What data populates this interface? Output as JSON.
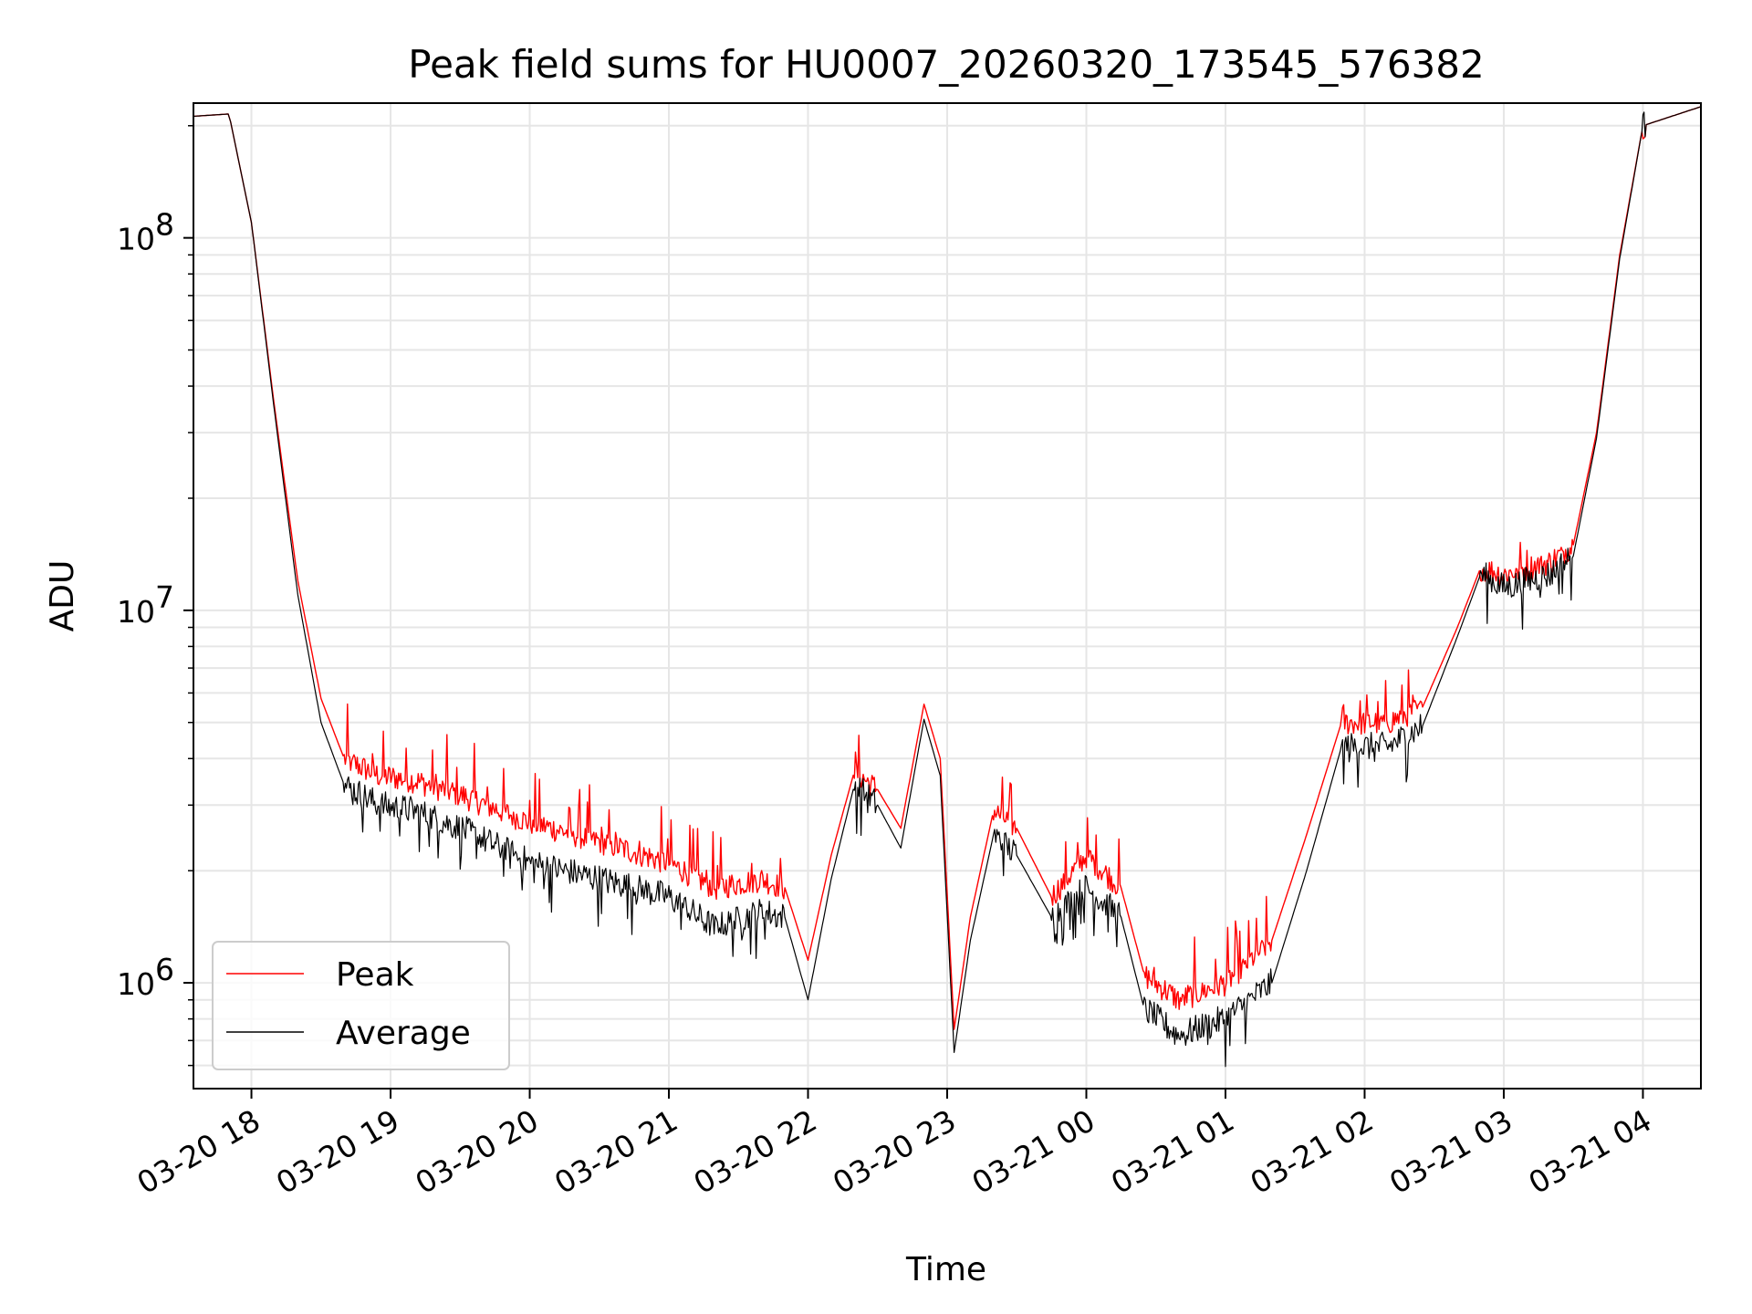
{
  "chart_data": {
    "type": "line",
    "title": "Peak field sums for HU0007_20260320_173545_576382",
    "xlabel": "Time",
    "ylabel": "ADU",
    "y_scale": "log",
    "ylim": [
      520000,
      230000000
    ],
    "xlim": [
      "2026-03-20 17:35",
      "2026-03-21 04:25"
    ],
    "x_ticks": [
      {
        "t": "2026-03-20 18:00",
        "label": "03-20 18"
      },
      {
        "t": "2026-03-20 19:00",
        "label": "03-20 19"
      },
      {
        "t": "2026-03-20 20:00",
        "label": "03-20 20"
      },
      {
        "t": "2026-03-20 21:00",
        "label": "03-20 21"
      },
      {
        "t": "2026-03-20 22:00",
        "label": "03-20 22"
      },
      {
        "t": "2026-03-20 23:00",
        "label": "03-20 23"
      },
      {
        "t": "2026-03-21 00:00",
        "label": "03-21 00"
      },
      {
        "t": "2026-03-21 01:00",
        "label": "03-21 01"
      },
      {
        "t": "2026-03-21 02:00",
        "label": "03-21 02"
      },
      {
        "t": "2026-03-21 03:00",
        "label": "03-21 03"
      },
      {
        "t": "2026-03-21 04:00",
        "label": "03-21 04"
      }
    ],
    "y_ticks": [
      {
        "value": 1000000,
        "base": "10",
        "exp": "6"
      },
      {
        "value": 10000000,
        "base": "10",
        "exp": "7"
      },
      {
        "value": 100000000,
        "base": "10",
        "exp": "8"
      }
    ],
    "grid": true,
    "legend_position": "lower-left",
    "series": [
      {
        "name": "Peak",
        "color": "#ff0000",
        "points": [
          [
            "2026-03-20 17:35",
            212000000
          ],
          [
            "2026-03-20 17:50",
            215000000
          ],
          [
            "2026-03-20 17:51",
            205000000
          ],
          [
            "2026-03-20 18:00",
            110000000
          ],
          [
            "2026-03-20 18:10",
            35000000
          ],
          [
            "2026-03-20 18:20",
            12000000
          ],
          [
            "2026-03-20 18:30",
            5800000
          ],
          [
            "2026-03-20 18:40",
            4000000
          ],
          [
            "2026-03-20 18:55",
            3600000
          ],
          [
            "2026-03-20 19:10",
            3500000
          ],
          [
            "2026-03-20 19:30",
            3200000
          ],
          [
            "2026-03-20 20:00",
            2700000
          ],
          [
            "2026-03-20 20:30",
            2400000
          ],
          [
            "2026-03-20 21:00",
            2100000
          ],
          [
            "2026-03-20 21:20",
            1800000
          ],
          [
            "2026-03-20 21:40",
            1900000
          ],
          [
            "2026-03-20 21:50",
            1800000
          ],
          [
            "2026-03-20 22:00",
            1150000
          ],
          [
            "2026-03-20 22:10",
            2200000
          ],
          [
            "2026-03-20 22:20",
            3700000
          ],
          [
            "2026-03-20 22:30",
            3300000
          ],
          [
            "2026-03-20 22:40",
            2600000
          ],
          [
            "2026-03-20 22:50",
            5600000
          ],
          [
            "2026-03-20 22:57",
            4000000
          ],
          [
            "2026-03-20 23:03",
            750000
          ],
          [
            "2026-03-20 23:10",
            1500000
          ],
          [
            "2026-03-20 23:20",
            2900000
          ],
          [
            "2026-03-20 23:30",
            2600000
          ],
          [
            "2026-03-20 23:45",
            1700000
          ],
          [
            "2026-03-21 00:00",
            2200000
          ],
          [
            "2026-03-21 00:15",
            1800000
          ],
          [
            "2026-03-21 00:25",
            1050000
          ],
          [
            "2026-03-21 00:40",
            900000
          ],
          [
            "2026-03-21 01:00",
            1000000
          ],
          [
            "2026-03-21 01:20",
            1300000
          ],
          [
            "2026-03-21 01:35",
            2500000
          ],
          [
            "2026-03-21 01:50",
            5000000
          ],
          [
            "2026-03-21 02:10",
            5000000
          ],
          [
            "2026-03-21 02:25",
            5500000
          ],
          [
            "2026-03-21 02:40",
            9000000
          ],
          [
            "2026-03-21 02:50",
            13000000
          ],
          [
            "2026-03-21 03:00",
            12500000
          ],
          [
            "2026-03-21 03:20",
            13500000
          ],
          [
            "2026-03-21 03:30",
            15000000
          ],
          [
            "2026-03-21 03:40",
            30000000
          ],
          [
            "2026-03-21 03:50",
            90000000
          ],
          [
            "2026-03-21 04:00",
            200000000
          ],
          [
            "2026-03-21 04:25",
            225000000
          ]
        ]
      },
      {
        "name": "Average",
        "color": "#000000",
        "points": [
          [
            "2026-03-20 17:35",
            212000000
          ],
          [
            "2026-03-20 17:50",
            215000000
          ],
          [
            "2026-03-20 17:51",
            205000000
          ],
          [
            "2026-03-20 18:00",
            110000000
          ],
          [
            "2026-03-20 18:10",
            34000000
          ],
          [
            "2026-03-20 18:20",
            11000000
          ],
          [
            "2026-03-20 18:30",
            5000000
          ],
          [
            "2026-03-20 18:40",
            3400000
          ],
          [
            "2026-03-20 18:55",
            3000000
          ],
          [
            "2026-03-20 19:10",
            2900000
          ],
          [
            "2026-03-20 19:30",
            2600000
          ],
          [
            "2026-03-20 20:00",
            2100000
          ],
          [
            "2026-03-20 20:30",
            1900000
          ],
          [
            "2026-03-20 21:00",
            1700000
          ],
          [
            "2026-03-20 21:20",
            1400000
          ],
          [
            "2026-03-20 21:40",
            1550000
          ],
          [
            "2026-03-20 21:50",
            1500000
          ],
          [
            "2026-03-20 22:00",
            900000
          ],
          [
            "2026-03-20 22:10",
            1900000
          ],
          [
            "2026-03-20 22:20",
            3400000
          ],
          [
            "2026-03-20 22:30",
            3000000
          ],
          [
            "2026-03-20 22:40",
            2300000
          ],
          [
            "2026-03-20 22:50",
            5100000
          ],
          [
            "2026-03-20 22:57",
            3600000
          ],
          [
            "2026-03-20 23:03",
            650000
          ],
          [
            "2026-03-20 23:10",
            1300000
          ],
          [
            "2026-03-20 23:20",
            2500000
          ],
          [
            "2026-03-20 23:30",
            2200000
          ],
          [
            "2026-03-20 23:45",
            1500000
          ],
          [
            "2026-03-21 00:00",
            1800000
          ],
          [
            "2026-03-21 00:15",
            1500000
          ],
          [
            "2026-03-21 00:25",
            850000
          ],
          [
            "2026-03-21 00:40",
            720000
          ],
          [
            "2026-03-21 01:00",
            800000
          ],
          [
            "2026-03-21 01:20",
            1000000
          ],
          [
            "2026-03-21 01:35",
            2000000
          ],
          [
            "2026-03-21 01:50",
            4300000
          ],
          [
            "2026-03-21 02:10",
            4300000
          ],
          [
            "2026-03-21 02:25",
            4900000
          ],
          [
            "2026-03-21 02:40",
            8500000
          ],
          [
            "2026-03-21 02:50",
            12500000
          ],
          [
            "2026-03-21 03:00",
            11500000
          ],
          [
            "2026-03-21 03:20",
            12500000
          ],
          [
            "2026-03-21 03:30",
            14000000
          ],
          [
            "2026-03-21 03:40",
            29000000
          ],
          [
            "2026-03-21 03:50",
            88000000
          ],
          [
            "2026-03-21 04:00",
            200000000
          ],
          [
            "2026-03-21 04:25",
            225000000
          ]
        ]
      }
    ]
  }
}
